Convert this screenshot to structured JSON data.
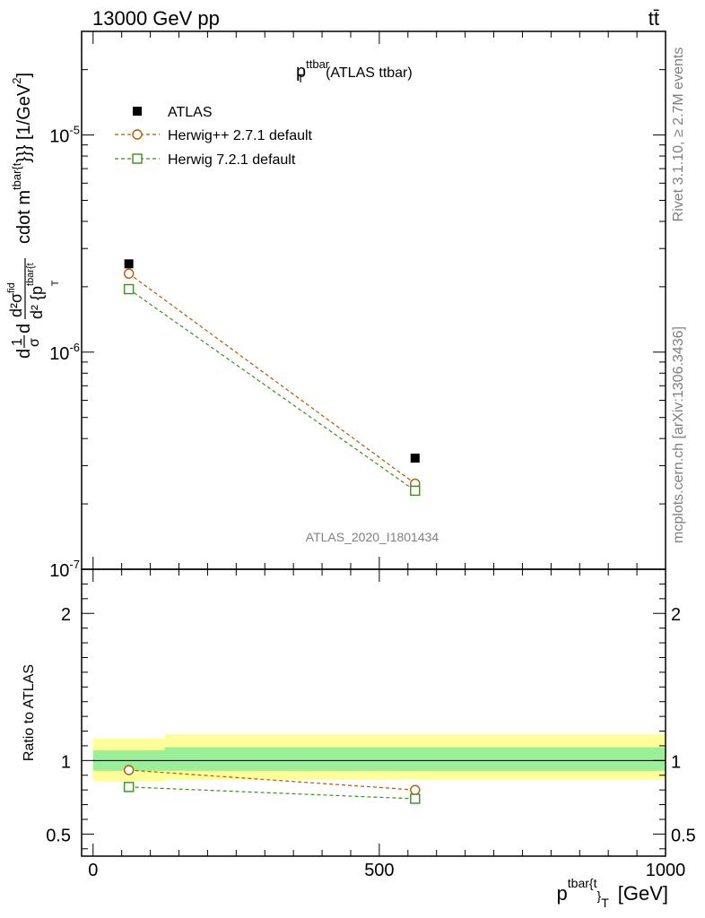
{
  "header": {
    "left": "13000 GeV pp",
    "right": "tt̄"
  },
  "side_labels": {
    "rivet": "Rivet 3.1.10, ≥ 2.7M events",
    "mcplots": "mcplots.cern.ch [arXiv:1306.3436]"
  },
  "chart_data": [
    {
      "type": "scatter",
      "title_main": "p",
      "title_sup": "ttbar",
      "title_sub": "T",
      "title_rest": "(ATLAS ttbar)",
      "analysis_label": "ATLAS_2020_I1801434",
      "ylabel_parts": {
        "prefix": "d",
        "frac1_num": "1",
        "frac1_den": "σ",
        "mid": "d",
        "frac2_num": "d²σ",
        "frac2_num_sup": "fid",
        "frac2_den": "d² {p",
        "frac2_den_sup": "tbar{t",
        "frac2_den_sub": "T",
        "tail": "cdot m",
        "tail_sup": "tbar{t",
        "tail_rest": "}}} [1/GeV",
        "tail_rest_sup": "2",
        "tail_end": "]"
      },
      "yscale": "log",
      "ylim": [
        1e-07,
        3e-05
      ],
      "y_tick_labels": [
        "10",
        "10",
        "10"
      ],
      "y_tick_exponents": [
        "-7",
        "-6",
        "-5"
      ],
      "y_tick_values": [
        1e-07,
        1e-06,
        1e-05
      ],
      "xlim": [
        -20,
        1000
      ],
      "legend_position": "top-left",
      "series": [
        {
          "name": "ATLAS",
          "marker": "filled-square",
          "color": "#000000",
          "x": [
            62.5,
            562.5
          ],
          "y": [
            2.55e-06,
            3.25e-07
          ]
        },
        {
          "name": "Herwig++ 2.7.1 default",
          "marker": "open-circle",
          "color": "#b35900",
          "x": [
            62.5,
            562.5
          ],
          "y": [
            2.3e-06,
            2.48e-07
          ]
        },
        {
          "name": "Herwig 7.2.1 default",
          "marker": "open-square",
          "color": "#3a8f1e",
          "x": [
            62.5,
            562.5
          ],
          "y": [
            1.95e-06,
            2.3e-07
          ]
        }
      ]
    },
    {
      "type": "scatter",
      "ylabel": "Ratio to ATLAS",
      "xlabel_main": "p",
      "xlabel_sup": "tbar{t",
      "xlabel_mid": "}",
      "xlabel_sub": "T",
      "xlabel_unit": "[GeV]",
      "ylim": [
        0.35,
        2.3
      ],
      "y_tick_labels": [
        "0.5",
        "1",
        "2"
      ],
      "y_tick_values": [
        0.5,
        1,
        2
      ],
      "xlim": [
        -20,
        1000
      ],
      "x_tick_labels": [
        "0",
        "500",
        "1000"
      ],
      "x_tick_values": [
        0,
        500,
        1000
      ],
      "bands": [
        {
          "name": "yellow",
          "color": "#ffff99",
          "bins": [
            [
              0,
              125,
              0.86,
              1.15
            ],
            [
              125,
              1000,
              0.87,
              1.18
            ]
          ]
        },
        {
          "name": "green",
          "color": "#99f099",
          "bins": [
            [
              0,
              125,
              0.93,
              1.07
            ],
            [
              125,
              1000,
              0.93,
              1.09
            ]
          ]
        }
      ],
      "series": [
        {
          "name": "Herwig++ 2.7.1 default",
          "marker": "open-circle",
          "color": "#b35900",
          "x": [
            62.5,
            562.5
          ],
          "y": [
            0.935,
            0.8
          ]
        },
        {
          "name": "Herwig 7.2.1 default",
          "marker": "open-square",
          "color": "#3a8f1e",
          "x": [
            62.5,
            562.5
          ],
          "y": [
            0.82,
            0.74
          ]
        }
      ]
    }
  ]
}
